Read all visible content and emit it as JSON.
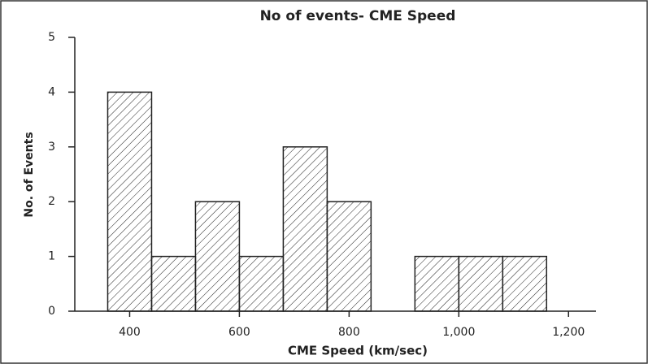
{
  "chart_data": {
    "type": "histogram",
    "title": "No of events- CME Speed",
    "xlabel": "CME Speed (km/sec)",
    "ylabel": "No. of Events",
    "bins": [
      360,
      440,
      520,
      600,
      680,
      760,
      840,
      920,
      1000,
      1080,
      1160
    ],
    "values": [
      4,
      1,
      2,
      1,
      3,
      2,
      0,
      1,
      1,
      1
    ],
    "color": "#222222",
    "hatch": "diagonal",
    "xlim": [
      300,
      1250
    ],
    "xticks": [
      400,
      600,
      800,
      {
        "value": 1000,
        "label": "1,000"
      },
      {
        "value": 1200,
        "label": "1,200"
      }
    ],
    "ylim": [
      0,
      5
    ],
    "yticks": [
      0,
      1,
      2,
      3,
      4,
      5
    ]
  }
}
